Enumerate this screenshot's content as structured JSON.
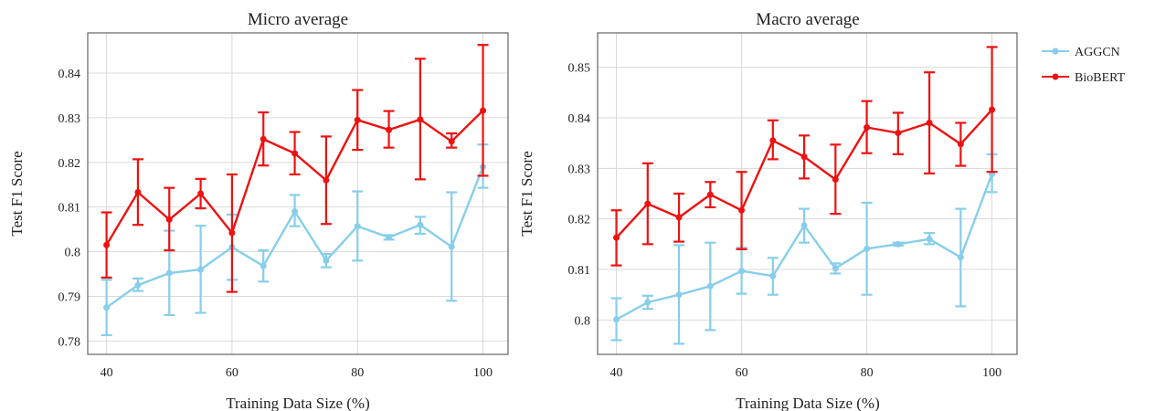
{
  "chart_data": [
    {
      "type": "line",
      "title": "Micro average",
      "xlabel": "Training Data Size (%)",
      "ylabel": "Test F1 Score",
      "xlim": [
        37,
        104
      ],
      "ylim": [
        0.777,
        0.849
      ],
      "xticks": [
        40,
        60,
        80,
        100
      ],
      "xtick_labels": [
        "40",
        "60",
        "80",
        "100"
      ],
      "yticks": [
        0.78,
        0.79,
        0.8,
        0.81,
        0.82,
        0.83,
        0.84
      ],
      "ytick_labels": [
        "0.78",
        "0.79",
        "0.8",
        "0.81",
        "0.82",
        "0.83",
        "0.84"
      ],
      "grid": true,
      "x": [
        40,
        45,
        50,
        55,
        60,
        65,
        70,
        75,
        80,
        85,
        90,
        95,
        100
      ],
      "series": [
        {
          "name": "AGGCN",
          "color": "#87ceeb",
          "values": [
            0.7875,
            0.7925,
            0.7952,
            0.796,
            0.801,
            0.7968,
            0.809,
            0.798,
            0.8057,
            0.8032,
            0.806,
            0.8011,
            0.819
          ],
          "err_low": [
            0.7813,
            0.7912,
            0.7858,
            0.7863,
            0.7937,
            0.7933,
            0.8057,
            0.7965,
            0.798,
            0.8027,
            0.804,
            0.789,
            0.8143
          ],
          "err_high": [
            0.7937,
            0.794,
            0.8047,
            0.8058,
            0.8083,
            0.8003,
            0.8127,
            0.7995,
            0.8135,
            0.8037,
            0.8078,
            0.8133,
            0.824
          ]
        },
        {
          "name": "BioBERT",
          "color": "#ee1111",
          "values": [
            0.8015,
            0.8133,
            0.8072,
            0.813,
            0.8042,
            0.8252,
            0.822,
            0.816,
            0.8295,
            0.8273,
            0.8296,
            0.8247,
            0.8316
          ],
          "err_low": [
            0.7942,
            0.806,
            0.8003,
            0.8097,
            0.791,
            0.8193,
            0.8173,
            0.8062,
            0.8228,
            0.8233,
            0.8162,
            0.8233,
            0.817
          ],
          "err_high": [
            0.8088,
            0.8207,
            0.8143,
            0.8163,
            0.8173,
            0.8312,
            0.8268,
            0.8258,
            0.8362,
            0.8315,
            0.8432,
            0.8265,
            0.8463
          ]
        }
      ]
    },
    {
      "type": "line",
      "title": "Macro average",
      "xlabel": "Training Data Size (%)",
      "ylabel": "Test F1 Score",
      "xlim": [
        37,
        104
      ],
      "ylim": [
        0.7932,
        0.8568
      ],
      "xticks": [
        40,
        60,
        80,
        100
      ],
      "xtick_labels": [
        "40",
        "60",
        "80",
        "100"
      ],
      "yticks": [
        0.8,
        0.81,
        0.82,
        0.83,
        0.84,
        0.85
      ],
      "ytick_labels": [
        "0.8",
        "0.81",
        "0.82",
        "0.83",
        "0.84",
        "0.85"
      ],
      "grid": true,
      "x": [
        40,
        45,
        50,
        55,
        60,
        65,
        70,
        75,
        80,
        85,
        90,
        95,
        100
      ],
      "series": [
        {
          "name": "AGGCN",
          "color": "#87ceeb",
          "values": [
            0.8001,
            0.8035,
            0.805,
            0.8067,
            0.8097,
            0.8087,
            0.8187,
            0.8102,
            0.8141,
            0.815,
            0.816,
            0.8124,
            0.8289
          ],
          "err_low": [
            0.796,
            0.8022,
            0.7953,
            0.798,
            0.8052,
            0.805,
            0.8153,
            0.8092,
            0.805,
            0.8147,
            0.815,
            0.8027,
            0.8253
          ],
          "err_high": [
            0.8043,
            0.8048,
            0.8148,
            0.8153,
            0.8143,
            0.8123,
            0.822,
            0.8112,
            0.8232,
            0.8153,
            0.8172,
            0.822,
            0.8328
          ]
        },
        {
          "name": "BioBERT",
          "color": "#ee1111",
          "values": [
            0.8163,
            0.823,
            0.8203,
            0.8248,
            0.8217,
            0.8355,
            0.8323,
            0.8278,
            0.8381,
            0.837,
            0.839,
            0.8348,
            0.8416
          ],
          "err_low": [
            0.8108,
            0.815,
            0.8155,
            0.8223,
            0.814,
            0.8318,
            0.828,
            0.821,
            0.833,
            0.8328,
            0.829,
            0.8305,
            0.8293
          ],
          "err_high": [
            0.8217,
            0.831,
            0.825,
            0.8273,
            0.8293,
            0.8395,
            0.8365,
            0.8347,
            0.8433,
            0.841,
            0.849,
            0.839,
            0.854
          ]
        }
      ]
    }
  ],
  "legend": {
    "placement": "right",
    "items": [
      {
        "name": "AGGCN",
        "color": "#87ceeb"
      },
      {
        "name": "BioBERT",
        "color": "#ee1111"
      }
    ]
  }
}
